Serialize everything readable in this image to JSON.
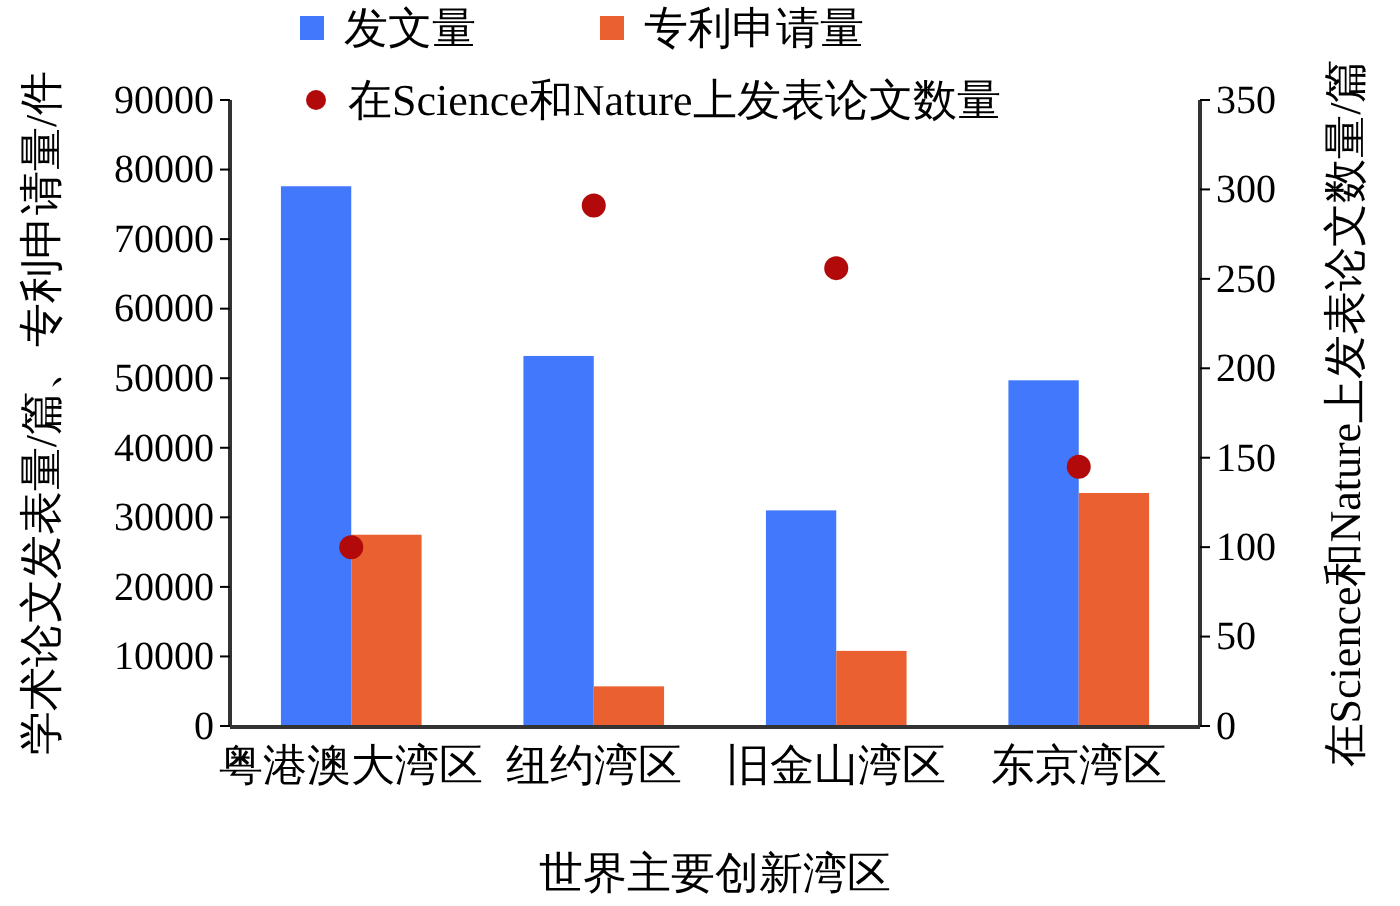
{
  "chart_data": {
    "type": "bar",
    "xlabel": "世界主要创新湾区",
    "ylabel": "学术论文发表量/篇、专利申请量/件",
    "y2label": "在Science和Nature上发表论文数量/篇",
    "categories": [
      "粤港澳大湾区",
      "纽约湾区",
      "旧金山湾区",
      "东京湾区"
    ],
    "series": [
      {
        "name": "发文量",
        "color": "#4178fc",
        "values": [
          77600,
          53200,
          31000,
          49700
        ]
      },
      {
        "name": "专利申请量",
        "color": "#ea6031",
        "values": [
          27500,
          5700,
          10800,
          33500
        ]
      },
      {
        "name": "在Science和Nature上发表论文数量",
        "type": "scatter",
        "axis": "y2",
        "color": "#b20a0a",
        "values": [
          100,
          291,
          256,
          145
        ]
      }
    ],
    "ylim": [
      0,
      90000
    ],
    "yticks": [
      0,
      10000,
      20000,
      30000,
      40000,
      50000,
      60000,
      70000,
      80000,
      90000
    ],
    "y2lim": [
      0,
      350
    ],
    "y2ticks": [
      0,
      50,
      100,
      150,
      200,
      250,
      300,
      350
    ],
    "grid": false,
    "legend": "top",
    "marker": "circle"
  }
}
